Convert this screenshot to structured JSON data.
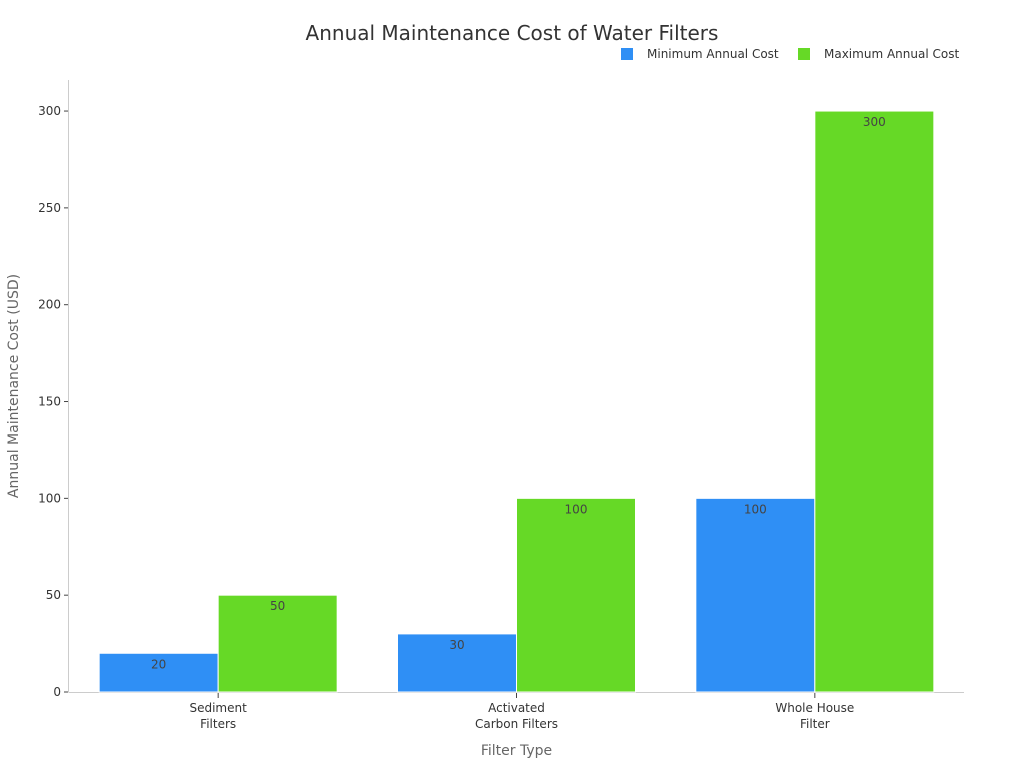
{
  "chart_data": {
    "type": "bar",
    "title": "Annual Maintenance Cost of Water Filters",
    "xlabel": "Filter Type",
    "ylabel": "Annual Maintenance Cost (USD)",
    "categories": [
      [
        "Sediment",
        "Filters"
      ],
      [
        "Activated",
        "Carbon Filters"
      ],
      [
        "Whole House",
        "Filter"
      ]
    ],
    "series": [
      {
        "name": "Minimum Annual Cost",
        "color": "#2f8ff5",
        "values": [
          20,
          30,
          100
        ]
      },
      {
        "name": "Maximum Annual Cost",
        "color": "#66d926",
        "values": [
          50,
          100,
          300
        ]
      }
    ],
    "ylim": [
      0,
      315
    ],
    "yticks": [
      0,
      50,
      100,
      150,
      200,
      250,
      300
    ],
    "grid": false,
    "legend_position": "top-right"
  }
}
